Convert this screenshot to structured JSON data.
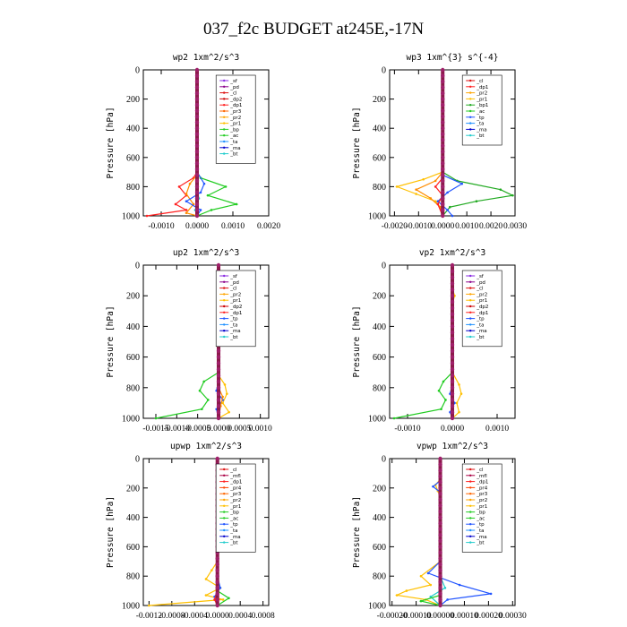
{
  "title": "037_f2c  BUDGET at245E,-17N",
  "ylabel": "Pressure [hPa]",
  "chart_data": [
    {
      "type": "line",
      "title": "wp2  1xm^2/s^3",
      "xlim": [
        -0.0015,
        0.002
      ],
      "xticks": [
        -0.001,
        0.0,
        0.001,
        0.002
      ],
      "xticklabels": [
        "-0.0010",
        "0.0000",
        "0.0010",
        "0.0020"
      ],
      "ylim": [
        1000,
        0
      ],
      "yticks": [
        0,
        200,
        400,
        600,
        800,
        1000
      ],
      "ylabel": "Pressure [hPa]",
      "legend": {
        "position": "top-right",
        "entries": [
          "_sf",
          "_pd",
          "_cl",
          "_dp2",
          "_dp1",
          "_pr3",
          "_pr2",
          "_pr1",
          "_bp",
          "_ac",
          "_ta",
          "_ma",
          "_bt"
        ]
      },
      "series": [
        {
          "name": "_dp1",
          "color": "#ff2020",
          "p": [
            700,
            740,
            800,
            860,
            920,
            960,
            1000
          ],
          "v": [
            0.0,
            -0.0001,
            -0.0005,
            -0.0003,
            -0.0006,
            -0.0003,
            -0.0014
          ]
        },
        {
          "name": "_pr2",
          "color": "#ff8c00",
          "p": [
            720,
            780,
            850,
            920,
            980,
            1000
          ],
          "v": [
            0.0,
            -0.0002,
            -0.0003,
            -0.0001,
            -0.0003,
            0.0
          ]
        },
        {
          "name": "_bp",
          "color": "#22cc22",
          "p": [
            700,
            740,
            800,
            860,
            920,
            960,
            1000
          ],
          "v": [
            0.0,
            0.0001,
            0.0008,
            0.0003,
            0.0011,
            0.0004,
            0.0
          ]
        },
        {
          "name": "_ac",
          "color": "#2255ff",
          "p": [
            700,
            780,
            840,
            900,
            960,
            1000
          ],
          "v": [
            0.0,
            0.0002,
            0.0001,
            -0.0003,
            0.0001,
            0.0
          ]
        },
        {
          "name": "_bt",
          "color": "#22cccc",
          "p": [
            800,
            880,
            960,
            1000
          ],
          "v": [
            0.0,
            5e-05,
            -5e-05,
            0.0
          ]
        }
      ]
    },
    {
      "type": "line",
      "title": "wp3  1xm^{3} s^{-4}",
      "xlim": [
        -0.0022,
        0.003
      ],
      "xticks": [
        -0.002,
        -0.001,
        0.0,
        0.001,
        0.002,
        0.003
      ],
      "xticklabels": [
        "-0.0020",
        "-0.0010",
        "0.0000",
        "0.0010",
        "0.0020",
        "0.0030"
      ],
      "ylim": [
        1000,
        0
      ],
      "yticks": [
        0,
        200,
        400,
        600,
        800,
        1000
      ],
      "ylabel": "Pressure [hPa]",
      "legend": {
        "position": "top-right",
        "entries": [
          "_cl",
          "_dp1",
          "_pr2",
          "_pr1",
          "_bp1",
          "_ac",
          "_tp",
          "_ta",
          "_ma",
          "_bt"
        ]
      },
      "series": [
        {
          "name": "_pr2",
          "color": "#ffc000",
          "p": [
            700,
            750,
            800,
            850,
            900,
            960,
            1000
          ],
          "v": [
            0.0,
            -0.0008,
            -0.0019,
            -0.0011,
            -0.0003,
            0.0,
            0.0
          ]
        },
        {
          "name": "_pr1",
          "color": "#ff8c00",
          "p": [
            700,
            760,
            820,
            880,
            940,
            1000
          ],
          "v": [
            0.0,
            -0.0003,
            -0.0011,
            -0.0005,
            -0.0001,
            0.0
          ]
        },
        {
          "name": "_bp1",
          "color": "#22aa22",
          "p": [
            700,
            760,
            820,
            860,
            900,
            940,
            1000
          ],
          "v": [
            0.0,
            0.0006,
            0.0024,
            0.0029,
            0.0014,
            0.0003,
            0.0
          ]
        },
        {
          "name": "_ac",
          "color": "#2255ff",
          "p": [
            720,
            780,
            840,
            900,
            960,
            1000
          ],
          "v": [
            0.0,
            0.0008,
            0.0002,
            -0.0002,
            0.0002,
            0.0004
          ]
        },
        {
          "name": "_cl",
          "color": "#ff2020",
          "p": [
            740,
            800,
            860,
            920,
            1000
          ],
          "v": [
            0.0,
            -0.0003,
            0.0,
            -0.0002,
            0.0
          ]
        }
      ]
    },
    {
      "type": "line",
      "title": "up2  1xm^2/s^3",
      "xlim": [
        -0.0018,
        0.0012
      ],
      "xticks": [
        -0.0015,
        -0.001,
        -0.0005,
        0.0,
        0.0005,
        0.001
      ],
      "xticklabels": [
        "-0.0015",
        "-0.0010",
        "-0.0005",
        "0.0000",
        "0.0005",
        "0.0010"
      ],
      "ylim": [
        1000,
        0
      ],
      "yticks": [
        0,
        200,
        400,
        600,
        800,
        1000
      ],
      "ylabel": "Pressure [hPa]",
      "legend": {
        "position": "top-right",
        "entries": [
          "_sf",
          "_pd",
          "_cl",
          "_pr2",
          "_pr1",
          "_dp2",
          "_dp1",
          "_tp",
          "_ta",
          "_ma",
          "_bt"
        ]
      },
      "series": [
        {
          "name": "_dp1",
          "color": "#22cc22",
          "p": [
            700,
            760,
            820,
            880,
            940,
            1000
          ],
          "v": [
            0.0,
            -0.00035,
            -0.00045,
            -0.00025,
            -0.0004,
            -0.0015
          ]
        },
        {
          "name": "_pr2",
          "color": "#ffc000",
          "p": [
            720,
            780,
            840,
            900,
            960,
            1000
          ],
          "v": [
            0.0,
            0.00015,
            0.0002,
            0.0001,
            0.00025,
            0.0
          ]
        },
        {
          "name": "_ta",
          "color": "#2255ff",
          "p": [
            750,
            820,
            880,
            940,
            1000
          ],
          "v": [
            0.0,
            -5e-05,
            0.0001,
            -5e-05,
            0.0
          ]
        },
        {
          "name": "_pr1",
          "color": "#ff8c00",
          "p": [
            800,
            860,
            920,
            1000
          ],
          "v": [
            0.0,
            0.0001,
            5e-05,
            0.0
          ]
        }
      ]
    },
    {
      "type": "line",
      "title": "vp2  1xm^2/s^3",
      "xlim": [
        -0.0014,
        0.0014
      ],
      "xticks": [
        -0.001,
        0.0,
        0.001
      ],
      "xticklabels": [
        "-0.0010",
        "0.0000",
        "0.0010"
      ],
      "ylim": [
        1000,
        0
      ],
      "yticks": [
        0,
        200,
        400,
        600,
        800,
        1000
      ],
      "ylabel": "Pressure [hPa]",
      "legend": {
        "position": "top-right",
        "entries": [
          "_sf",
          "_pd",
          "_cl",
          "_pr2",
          "_pr1",
          "_dp2",
          "_dp1",
          "_tp",
          "_ta",
          "_ma",
          "_bt"
        ]
      },
      "series": [
        {
          "name": "_dp1",
          "color": "#22cc22",
          "p": [
            700,
            760,
            820,
            880,
            940,
            1000
          ],
          "v": [
            0.0,
            -0.0002,
            -0.0003,
            -0.00015,
            -0.00025,
            -0.0013
          ]
        },
        {
          "name": "_pr2",
          "color": "#ffc000",
          "p": [
            150,
            200,
            250,
            700,
            780,
            840,
            900,
            960,
            1000
          ],
          "v": [
            0.0,
            5e-05,
            0.0,
            0.0,
            0.00015,
            0.0002,
            0.0001,
            0.00015,
            0.0
          ]
        },
        {
          "name": "_ta",
          "color": "#2255ff",
          "p": [
            780,
            840,
            900,
            960,
            1000
          ],
          "v": [
            0.0,
            -5e-05,
            5e-05,
            -5e-05,
            0.0
          ]
        }
      ]
    },
    {
      "type": "line",
      "title": "upwp  1xm^2/s^3",
      "xlim": [
        -0.0013,
        0.0009
      ],
      "xticks": [
        -0.0012,
        -0.0008,
        -0.0004,
        0.0,
        0.0004,
        0.0008
      ],
      "xticklabels": [
        "-0.0012",
        "-0.0008",
        "-0.0004",
        "0.0000",
        "0.0004",
        "0.0008"
      ],
      "ylim": [
        1000,
        0
      ],
      "yticks": [
        0,
        200,
        400,
        600,
        800,
        1000
      ],
      "ylabel": "Pressure [hPa]",
      "legend": {
        "position": "top-right",
        "entries": [
          "_cl",
          "_mfl",
          "_dp1",
          "_pr4",
          "_pr3",
          "_pr2",
          "_pr1",
          "_bp",
          "_ac",
          "_tp",
          "_ta",
          "_ma",
          "_bt"
        ]
      },
      "series": [
        {
          "name": "_pr2",
          "color": "#ffc000",
          "p": [
            700,
            760,
            820,
            880,
            930,
            960,
            1000
          ],
          "v": [
            0.0,
            -0.0001,
            -0.0002,
            5e-05,
            -0.0002,
            0.0001,
            -0.0012
          ]
        },
        {
          "name": "_bp",
          "color": "#22cc22",
          "p": [
            900,
            950,
            1000
          ],
          "v": [
            0.0,
            0.0002,
            0.0
          ]
        },
        {
          "name": "_ac",
          "color": "#2255ff",
          "p": [
            800,
            880,
            940,
            1000
          ],
          "v": [
            0.0,
            5e-05,
            -5e-05,
            0.0
          ]
        },
        {
          "name": "_dp1",
          "color": "#ff2020",
          "p": [
            900,
            960,
            1000
          ],
          "v": [
            0.0,
            -5e-05,
            0.0
          ]
        }
      ]
    },
    {
      "type": "line",
      "title": "vpwp  1xm^2/s^3",
      "xlim": [
        -0.00021,
        0.00031
      ],
      "xticks": [
        -0.0002,
        -0.0001,
        0.0,
        0.0001,
        0.0002,
        0.0003
      ],
      "xticklabels": [
        "-0.00020",
        "-0.00010",
        "0.00000",
        "0.00010",
        "0.00020",
        "0.00030"
      ],
      "ylim": [
        1000,
        0
      ],
      "yticks": [
        0,
        200,
        400,
        600,
        800,
        1000
      ],
      "ylabel": "Pressure [hPa]",
      "legend": {
        "position": "top-right",
        "entries": [
          "_cl",
          "_mfl",
          "_dp1",
          "_pr4",
          "_pr3",
          "_pr2",
          "_pr1",
          "_bp",
          "_ac",
          "_tp",
          "_ta",
          "_ma",
          "_bt"
        ]
      },
      "series": [
        {
          "name": "_pr2",
          "color": "#ffc000",
          "p": [
            140,
            180,
            220,
            260,
            700,
            800,
            860,
            900,
            930,
            960,
            1000
          ],
          "v": [
            0.0,
            -2e-05,
            -1e-05,
            0.0,
            0.0,
            -8e-05,
            -4e-05,
            -0.00014,
            -0.00018,
            -6e-05,
            0.0
          ]
        },
        {
          "name": "_ac",
          "color": "#2255ff",
          "p": [
            150,
            190,
            230,
            700,
            780,
            860,
            920,
            960,
            1000
          ],
          "v": [
            0.0,
            -3e-05,
            0.0,
            0.0,
            -5e-05,
            8e-05,
            0.00021,
            3e-05,
            0.0
          ]
        },
        {
          "name": "_tp",
          "color": "#22cccc",
          "p": [
            800,
            880,
            940,
            1000
          ],
          "v": [
            0.0,
            2e-05,
            -4e-05,
            0.0
          ]
        },
        {
          "name": "_bp",
          "color": "#22cc22",
          "p": [
            930,
            970,
            1000
          ],
          "v": [
            0.0,
            -8e-05,
            0.0
          ]
        }
      ]
    }
  ]
}
